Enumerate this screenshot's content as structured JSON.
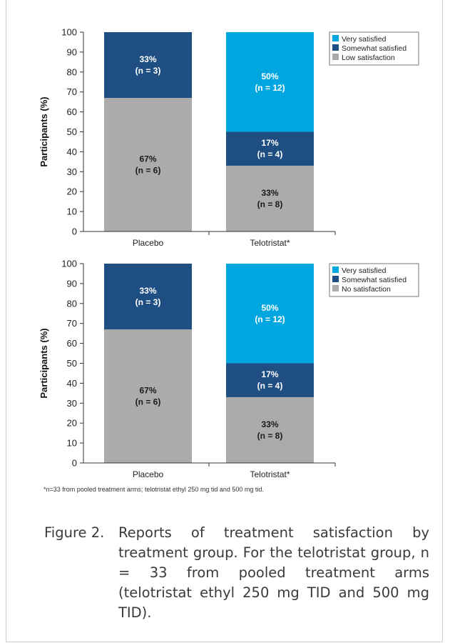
{
  "colors": {
    "very_satisfied": "#00a6e0",
    "somewhat_satisfied": "#1f4e82",
    "low_satisfaction": "#ababab",
    "axis": "#333333"
  },
  "chart_data": [
    {
      "type": "bar",
      "stacked": true,
      "ylabel": "Participants (%)",
      "ylim": [
        0,
        100
      ],
      "yticks": [
        0,
        10,
        20,
        30,
        40,
        50,
        60,
        70,
        80,
        90,
        100
      ],
      "categories": [
        "Placebo",
        "Telotristat*"
      ],
      "legend_position": "top-right",
      "series": [
        {
          "name": "Low satisfaction",
          "color": "#ababab",
          "values": [
            67,
            33
          ],
          "labels": [
            "67%\n(n = 6)",
            "33%\n(n = 8)"
          ]
        },
        {
          "name": "Somewhat satisfied",
          "color": "#1f4e82",
          "values": [
            33,
            17
          ],
          "labels": [
            "33%\n(n = 3)",
            "17%\n(n = 4)"
          ]
        },
        {
          "name": "Very satisfied",
          "color": "#00a6e0",
          "values": [
            0,
            50
          ],
          "labels": [
            "",
            "50%\n(n = 12)"
          ]
        }
      ],
      "legend_order": [
        "Very satisfied",
        "Somewhat satisfied",
        "Low satisfaction"
      ]
    },
    {
      "type": "bar",
      "stacked": true,
      "ylabel": "Participants (%)",
      "ylim": [
        0,
        100
      ],
      "yticks": [
        0,
        10,
        20,
        30,
        40,
        50,
        60,
        70,
        80,
        90,
        100
      ],
      "categories": [
        "Placebo",
        "Telotristat*"
      ],
      "legend_position": "top-right",
      "series": [
        {
          "name": "No satisfaction",
          "color": "#ababab",
          "values": [
            67,
            33
          ],
          "labels": [
            "67%\n(n = 6)",
            "33%\n(n = 8)"
          ]
        },
        {
          "name": "Somewhat satisfied",
          "color": "#1f4e82",
          "values": [
            33,
            17
          ],
          "labels": [
            "33%\n(n = 3)",
            "17%\n(n = 4)"
          ]
        },
        {
          "name": "Very satisfied",
          "color": "#00a6e0",
          "values": [
            0,
            50
          ],
          "labels": [
            "",
            "50%\n(n = 12)"
          ]
        }
      ],
      "legend_order": [
        "Very satisfied",
        "Somewhat satisfied",
        "No satisfaction"
      ]
    }
  ],
  "footnote": "*n=33 from pooled treatment arms; telotristat ethyl 250 mg tid and 500 mg tid.",
  "caption": {
    "label": "Figure 2.",
    "text": "Reports of treatment satisfaction by treatment group. For the telotristat group, n = 33 from pooled treatment arms (telotristat ethyl 250 mg TID and 500 mg TID)."
  }
}
